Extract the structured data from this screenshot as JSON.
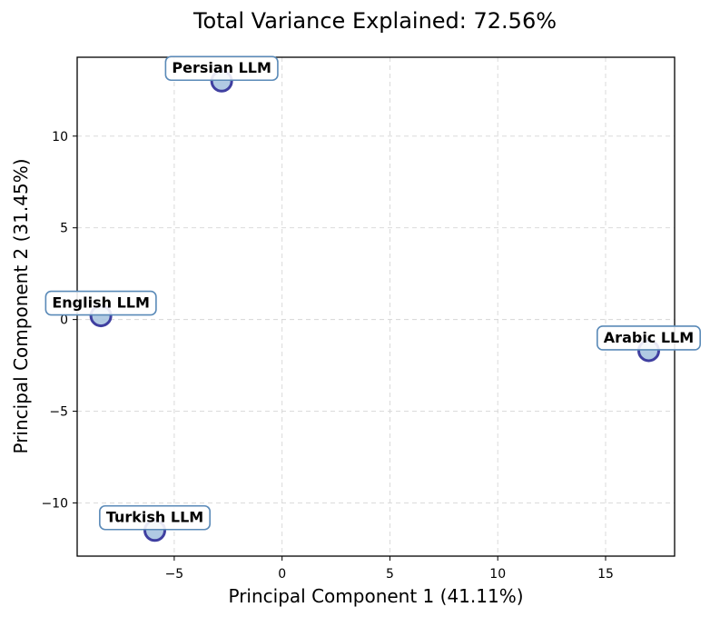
{
  "chart_data": {
    "type": "scatter",
    "title": "Total Variance Explained: 72.56%",
    "xlabel": "Principal Component 1 (41.11%)",
    "ylabel": "Principal Component 2 (31.45%)",
    "xlim": [
      -9.5,
      18.2
    ],
    "ylim": [
      -12.9,
      14.3
    ],
    "xticks": [
      -5,
      0,
      5,
      10,
      15
    ],
    "yticks": [
      -10,
      -5,
      0,
      5,
      10
    ],
    "xtick_labels": [
      "−5",
      "0",
      "5",
      "10",
      "15"
    ],
    "ytick_labels": [
      "−10",
      "−5",
      "0",
      "5",
      "10"
    ],
    "grid": true,
    "points": [
      {
        "label": "Persian LLM",
        "x": -2.8,
        "y": 13.0
      },
      {
        "label": "English LLM",
        "x": -8.4,
        "y": 0.2
      },
      {
        "label": "Arabic LLM",
        "x": 17.0,
        "y": -1.7
      },
      {
        "label": "Turkish LLM",
        "x": -5.9,
        "y": -11.5
      }
    ],
    "colors": {
      "marker_fill": "#a8c4e0",
      "marker_edge": "#3f3fa0",
      "label_box_edge": "#5a8ab8",
      "grid": "#d6d6d6"
    }
  }
}
